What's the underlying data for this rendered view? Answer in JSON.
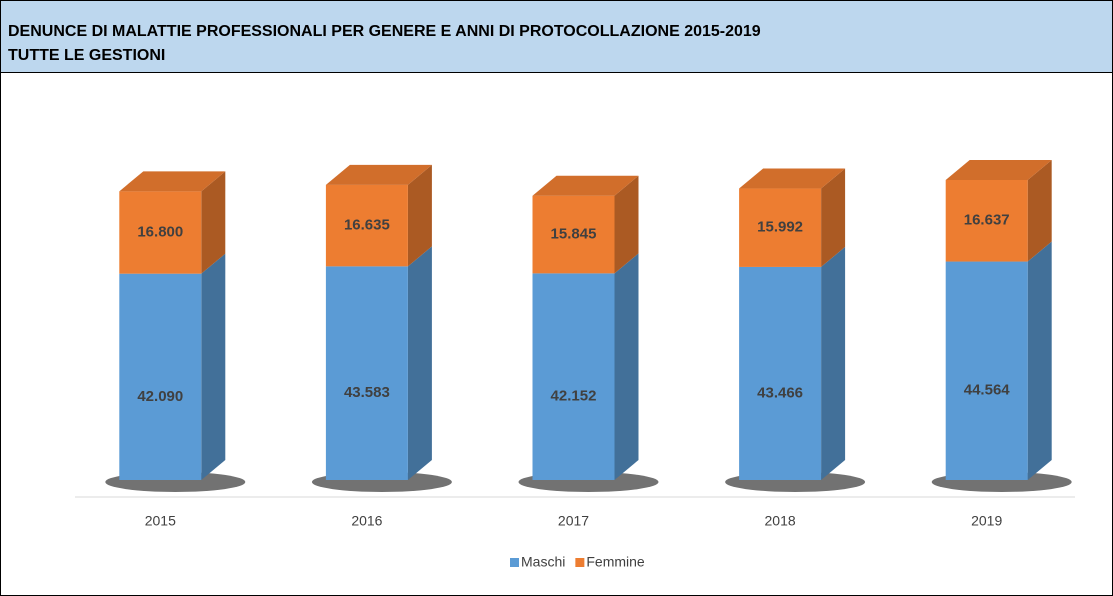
{
  "chart_data": {
    "type": "stacked_bar_3d",
    "title": "DENUNCE DI MALATTIE PROFESSIONALI PER GENERE E ANNI DI PROTOCOLLAZIONE 2015-2019",
    "subtitle": "TUTTE LE GESTIONI",
    "categories": [
      "2015",
      "2016",
      "2017",
      "2018",
      "2019"
    ],
    "series": [
      {
        "name": "Maschi",
        "color": "#5b9bd5",
        "values": [
          42090,
          43583,
          42152,
          43466,
          44564
        ],
        "value_labels": [
          "42.090",
          "43.583",
          "42.152",
          "43.466",
          "44.564"
        ]
      },
      {
        "name": "Femmine",
        "color": "#ed7d31",
        "values": [
          16800,
          16635,
          15845,
          15992,
          16637
        ],
        "value_labels": [
          "16.800",
          "16.635",
          "15.845",
          "15.992",
          "16.637"
        ]
      }
    ],
    "legend": "bottom"
  }
}
